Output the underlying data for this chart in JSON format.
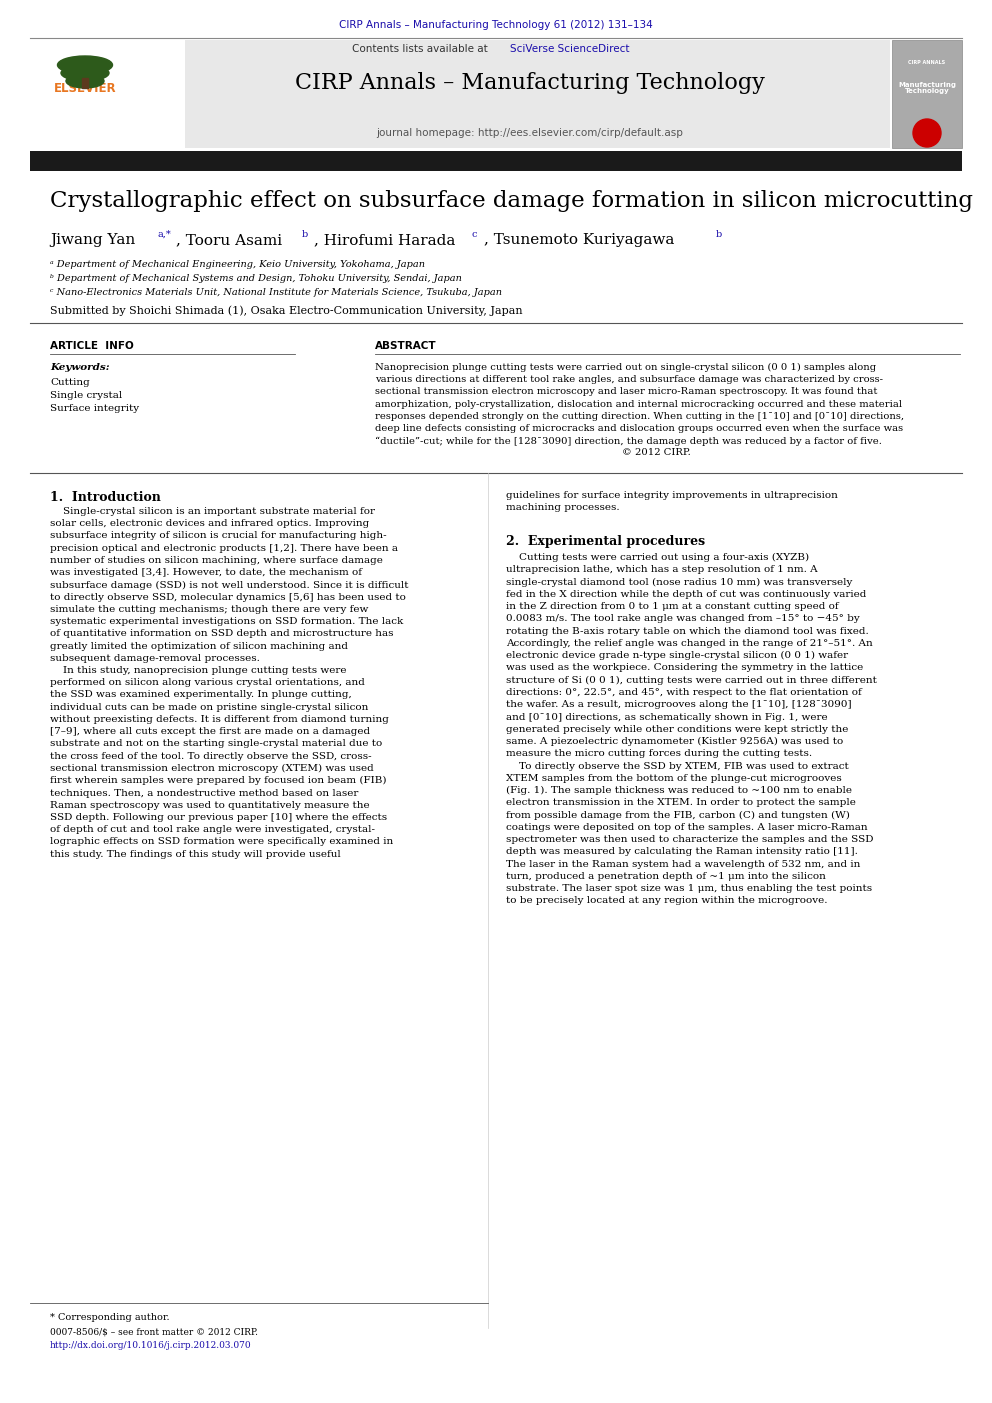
{
  "page_bg": "#ffffff",
  "header_journal": "CIRP Annals – Manufacturing Technology 61 (2012) 131–134",
  "header_journal_color": "#1a0dab",
  "header_line_color": "#000000",
  "journal_header_bg": "#e8e8e8",
  "journal_title": "CIRP Annals – Manufacturing Technology",
  "journal_url": "journal homepage: http://ees.elsevier.com/cirp/default.asp",
  "paper_title": "Crystallographic effect on subsurface damage formation in silicon microcutting",
  "affil_a": "ᵃ Department of Mechanical Engineering, Keio University, Yokohama, Japan",
  "affil_b": "ᵇ Department of Mechanical Systems and Design, Tohoku University, Sendai, Japan",
  "affil_c": "ᶜ Nano-Electronics Materials Unit, National Institute for Materials Science, Tsukuba, Japan",
  "submitted": "Submitted by Shoichi Shimada (1), Osaka Electro-Communication University, Japan",
  "article_info_title": "ARTICLE  INFO",
  "keywords_title": "Keywords:",
  "keywords": [
    "Cutting",
    "Single crystal",
    "Surface integrity"
  ],
  "abstract_title": "ABSTRACT",
  "footer_text1": "* Corresponding author.",
  "footer_line1": "0007-8506/$ – see front matter © 2012 CIRP.",
  "footer_line2": "http://dx.doi.org/10.1016/j.cirp.2012.03.070",
  "footer_color": "#1a0dab",
  "black_bar_color": "#1a1a1a",
  "title_color": "#000000",
  "text_color": "#000000"
}
